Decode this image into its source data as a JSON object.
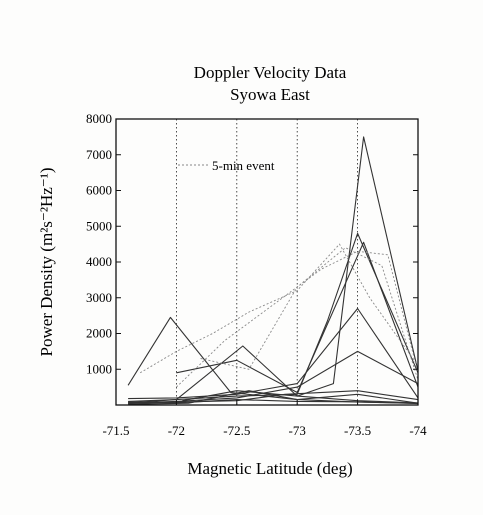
{
  "chart_data": {
    "type": "line",
    "title": "Doppler Velocity Data",
    "subtitle": "Syowa East",
    "xlabel": "Magnetic Latitude (deg)",
    "ylabel": "Power Density (m²s⁻²Hz⁻¹)",
    "xlim": [
      -71.5,
      -74
    ],
    "ylim": [
      0,
      8000
    ],
    "xticks": [
      -71.5,
      -72,
      -72.5,
      -73,
      -73.5,
      -74
    ],
    "xtick_labels": [
      "-71.5",
      "-72",
      "-72.5",
      "-73",
      "-73.5",
      "-74"
    ],
    "yticks": [
      1000,
      2000,
      3000,
      4000,
      5000,
      6000,
      7000,
      8000
    ],
    "ytick_labels": [
      "1000",
      "2000",
      "3000",
      "4000",
      "5000",
      "6000",
      "7000",
      "8000"
    ],
    "vertical_gridlines": [
      -72,
      -72.5,
      -73,
      -73.5
    ],
    "grid": "vertical dotted",
    "legend": {
      "position": "top-left",
      "entries": [
        "5-min event"
      ]
    },
    "colors": {
      "normal": "#333333",
      "event": "#888888"
    },
    "series": [
      {
        "style": "normal",
        "x": [
          -71.6,
          -71.95,
          -72.45,
          -73.0,
          -73.5,
          -74.0
        ],
        "y": [
          550,
          2450,
          350,
          150,
          80,
          50
        ]
      },
      {
        "style": "normal",
        "x": [
          -71.6,
          -72.0,
          -72.55,
          -73.0,
          -73.5,
          -74.0
        ],
        "y": [
          60,
          150,
          1650,
          250,
          120,
          60
        ]
      },
      {
        "style": "normal",
        "x": [
          -72.0,
          -72.5,
          -73.0,
          -73.55,
          -74.0
        ],
        "y": [
          900,
          1250,
          350,
          4550,
          500
        ]
      },
      {
        "style": "normal",
        "x": [
          -72.05,
          -72.5,
          -73.0,
          -73.3,
          -73.55,
          -74.0
        ],
        "y": [
          120,
          400,
          250,
          600,
          7500,
          950
        ]
      },
      {
        "style": "normal",
        "x": [
          -71.6,
          -72.0,
          -72.5,
          -73.0,
          -73.5,
          -74.0
        ],
        "y": [
          180,
          200,
          300,
          600,
          2700,
          200
        ]
      },
      {
        "style": "normal",
        "x": [
          -71.6,
          -72.0,
          -72.5,
          -73.0,
          -73.25,
          -73.5,
          -74.0
        ],
        "y": [
          100,
          150,
          250,
          300,
          2350,
          4800,
          900
        ]
      },
      {
        "style": "normal",
        "x": [
          -71.6,
          -72.0,
          -72.5,
          -73.0,
          -73.5,
          -74.0
        ],
        "y": [
          60,
          100,
          200,
          500,
          1500,
          600
        ]
      },
      {
        "style": "normal",
        "x": [
          -71.6,
          -72.0,
          -72.5,
          -72.9,
          -73.5,
          -74.0
        ],
        "y": [
          40,
          80,
          120,
          300,
          400,
          150
        ]
      },
      {
        "style": "normal",
        "x": [
          -71.6,
          -72.1,
          -72.6,
          -73.0,
          -73.5,
          -74.0
        ],
        "y": [
          20,
          50,
          400,
          150,
          300,
          50
        ]
      },
      {
        "style": "normal",
        "x": [
          -71.6,
          -72.0,
          -72.5,
          -73.0,
          -73.5,
          -74.0
        ],
        "y": [
          80,
          60,
          150,
          100,
          90,
          40
        ]
      },
      {
        "style": "event",
        "x": [
          -71.7,
          -72.0,
          -72.3,
          -72.6,
          -73.0,
          -73.35,
          -73.6,
          -74.0
        ],
        "y": [
          900,
          1500,
          2000,
          2600,
          3200,
          4500,
          3000,
          1100
        ]
      },
      {
        "style": "event",
        "x": [
          -72.0,
          -72.4,
          -72.8,
          -73.2,
          -73.5,
          -73.75,
          -74.0
        ],
        "y": [
          500,
          1800,
          2800,
          3800,
          4300,
          4200,
          900
        ]
      },
      {
        "style": "event",
        "x": [
          -72.2,
          -72.6,
          -73.0,
          -73.4,
          -73.7,
          -74.0
        ],
        "y": [
          1300,
          1000,
          3300,
          4400,
          3900,
          700
        ]
      }
    ]
  }
}
